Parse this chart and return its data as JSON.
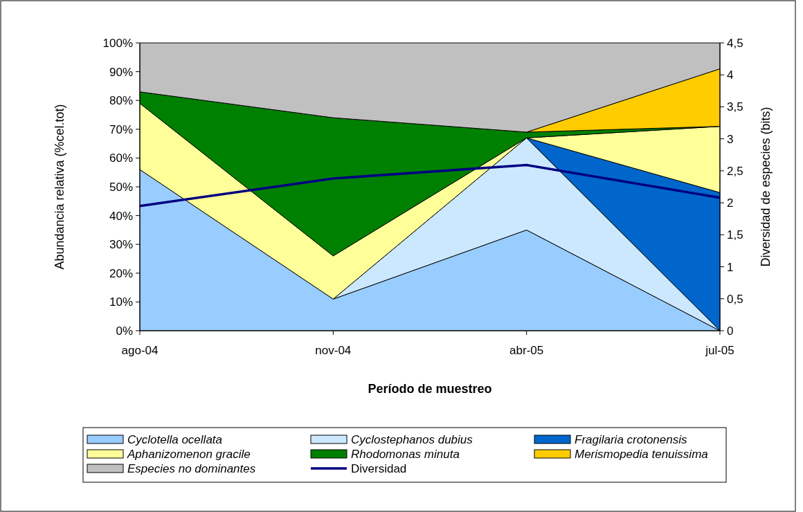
{
  "chart_data": {
    "type": "area",
    "stacked": true,
    "xlabel": "Período de muestreo",
    "ylabel": "Abundancia relativa (%cel.tot)",
    "y2label": "Diversidad de especies (bits)",
    "categories": [
      "ago-04",
      "nov-04",
      "abr-05",
      "jul-05"
    ],
    "ylim": [
      0,
      100
    ],
    "yticks": [
      {
        "value": 0,
        "label": "0%"
      },
      {
        "value": 10,
        "label": "10%"
      },
      {
        "value": 20,
        "label": "20%"
      },
      {
        "value": 30,
        "label": "30%"
      },
      {
        "value": 40,
        "label": "40%"
      },
      {
        "value": 50,
        "label": "50%"
      },
      {
        "value": 60,
        "label": "60%"
      },
      {
        "value": 70,
        "label": "70%"
      },
      {
        "value": 80,
        "label": "80%"
      },
      {
        "value": 90,
        "label": "90%"
      },
      {
        "value": 100,
        "label": "100%"
      }
    ],
    "y2lim": [
      0,
      4.5
    ],
    "y2ticks": [
      0,
      {
        "value": 0.5,
        "label": "0,5"
      },
      1,
      {
        "value": 1.5,
        "label": "1,5"
      },
      2,
      {
        "value": 2.5,
        "label": "2,5"
      },
      3,
      {
        "value": 3.5,
        "label": "3,5"
      },
      4,
      {
        "value": 4.5,
        "label": "4,5"
      }
    ],
    "legend": "bottom",
    "grid": false,
    "series": [
      {
        "name": "Cyclotella ocellata",
        "color": "#99ccff",
        "values": [
          56,
          11,
          35,
          0
        ]
      },
      {
        "name": "Cyclostephanos dubius",
        "color": "#cce8ff",
        "values": [
          null,
          0,
          32,
          0
        ]
      },
      {
        "name": "Fragilaria crotonensis",
        "color": "#0066cc",
        "values": [
          null,
          null,
          0,
          48
        ]
      },
      {
        "name": "Aphanizomenon gracile",
        "color": "#ffff99",
        "values": [
          23,
          15,
          0,
          23
        ]
      },
      {
        "name": "Rhodomonas minuta",
        "color": "#008000",
        "values": [
          4,
          48,
          2,
          0
        ]
      },
      {
        "name": "Merismopedia tenuissima",
        "color": "#ffcc00",
        "values": [
          null,
          null,
          0,
          20
        ]
      },
      {
        "name": "Especies no dominantes",
        "color": "#c0c0c0",
        "values": [
          17,
          26,
          31,
          9
        ]
      },
      {
        "name": "Diversidad",
        "type": "line",
        "axis": "y2",
        "color": "#000080",
        "values": [
          1.95,
          2.38,
          2.59,
          2.08
        ]
      }
    ]
  }
}
